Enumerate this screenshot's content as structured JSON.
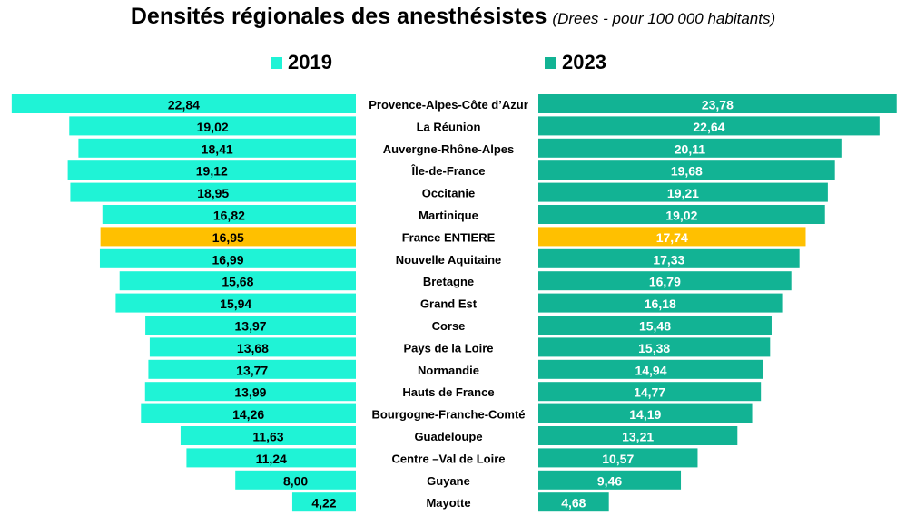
{
  "colors": {
    "series_2019": "#1ff3d6",
    "series_2023": "#12b394",
    "highlight": "#ffc000",
    "label_2019": "#000000",
    "label_2023": "#ffffff"
  },
  "chart_data": {
    "type": "bar",
    "title": "Densités régionales des anesthésistes",
    "subtitle": "(Drees - pour 100 000 habitants)",
    "highlight_category": "France ENTIERE",
    "categories": [
      "Provence-Alpes-Côte d’Azur",
      "La Réunion",
      "Auvergne-Rhône-Alpes",
      "Île-de-France",
      "Occitanie",
      "Martinique",
      "France ENTIERE",
      "Nouvelle Aquitaine",
      "Bretagne",
      "Grand Est",
      "Corse",
      "Pays de la Loire",
      "Normandie",
      "Hauts de France",
      "Bourgogne-Franche-Comté",
      "Guadeloupe",
      "Centre –Val de Loire",
      "Guyane",
      "Mayotte"
    ],
    "series": [
      {
        "name": "2019",
        "values": [
          22.84,
          19.02,
          18.41,
          19.12,
          18.95,
          16.82,
          16.95,
          16.99,
          15.68,
          15.94,
          13.97,
          13.68,
          13.77,
          13.99,
          14.26,
          11.63,
          11.24,
          8.0,
          4.22
        ],
        "labels": [
          "22,84",
          "19,02",
          "18,41",
          "19,12",
          "18,95",
          "16,82",
          "16,95",
          "16,99",
          "15,68",
          "15,94",
          "13,97",
          "13,68",
          "13,77",
          "13,99",
          "14,26",
          "11,63",
          "11,24",
          "8,00",
          "4,22"
        ]
      },
      {
        "name": "2023",
        "values": [
          23.78,
          22.64,
          20.11,
          19.68,
          19.21,
          19.02,
          17.74,
          17.33,
          16.79,
          16.18,
          15.48,
          15.38,
          14.94,
          14.77,
          14.19,
          13.21,
          10.57,
          9.46,
          4.68
        ],
        "labels": [
          "23,78",
          "22,64",
          "20,11",
          "19,68",
          "19,21",
          "19,02",
          "17,74",
          "17,33",
          "16,79",
          "16,18",
          "15,48",
          "15,38",
          "14,94",
          "14,77",
          "14,19",
          "13,21",
          "10,57",
          "9,46",
          "4,68"
        ]
      }
    ]
  }
}
